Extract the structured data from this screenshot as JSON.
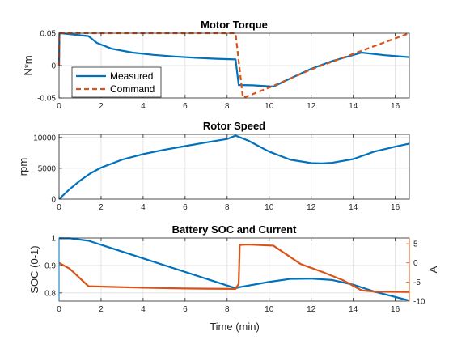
{
  "figure": {
    "xlabel": "Time (min)"
  },
  "chart_data": [
    {
      "type": "line",
      "title": "Motor Torque",
      "ylabel": "N*m",
      "xlim": [
        0,
        16.67
      ],
      "ylim": [
        -0.05,
        0.05
      ],
      "xticks": [
        0,
        2,
        4,
        6,
        8,
        10,
        12,
        14,
        16
      ],
      "yticks": [
        -0.05,
        0,
        0.05
      ],
      "ytick_labels": [
        "-0.05",
        "0",
        "0.05"
      ],
      "grid": true,
      "legend": "lower-left",
      "series": [
        {
          "name": "Measured",
          "color": "#0072BD",
          "style": "solid",
          "x": [
            0,
            0.02,
            0.1,
            1.4,
            1.8,
            2.5,
            3.5,
            4.5,
            5.5,
            6.5,
            7.5,
            8.4,
            8.55,
            9.2,
            10.2,
            11,
            12,
            13,
            14.4,
            15.5,
            16.67
          ],
          "y": [
            0,
            0.05,
            0.05,
            0.0455,
            0.035,
            0.026,
            0.02,
            0.0165,
            0.014,
            0.012,
            0.0105,
            0.0095,
            -0.03,
            -0.0305,
            -0.0325,
            -0.02,
            -0.005,
            0.007,
            0.02,
            0.016,
            0.013
          ]
        },
        {
          "name": "Command",
          "color": "#D95319",
          "style": "dashed",
          "x": [
            0,
            0.02,
            8.4,
            8.75,
            8.75,
            10,
            12,
            14,
            16.67
          ],
          "y": [
            0,
            0.05,
            0.05,
            -0.05,
            -0.05,
            -0.034,
            -0.006,
            0.018,
            0.05
          ]
        }
      ]
    },
    {
      "type": "line",
      "title": "Rotor Speed",
      "ylabel": "rpm",
      "xlim": [
        0,
        16.67
      ],
      "ylim": [
        0,
        10500
      ],
      "xticks": [
        0,
        2,
        4,
        6,
        8,
        10,
        12,
        14,
        16
      ],
      "yticks": [
        0,
        5000,
        10000
      ],
      "ytick_labels": [
        "0",
        "5000",
        "10000"
      ],
      "grid": true,
      "series": [
        {
          "color": "#0072BD",
          "style": "solid",
          "x": [
            0,
            0.5,
            1,
            1.5,
            2,
            3,
            4,
            5,
            6,
            7,
            8,
            8.4,
            9,
            10,
            11,
            12,
            12.5,
            13,
            14,
            15,
            16,
            16.67
          ],
          "y": [
            0,
            1600,
            3000,
            4200,
            5100,
            6400,
            7300,
            8000,
            8600,
            9200,
            9750,
            10300,
            9500,
            7700,
            6400,
            5850,
            5800,
            5900,
            6500,
            7700,
            8500,
            9000
          ]
        }
      ]
    },
    {
      "type": "line",
      "title": "Battery SOC and Current",
      "ylabel": "SOC (0-1)",
      "ylabel_right": "A",
      "xlabel": "Time (min)",
      "xlim": [
        0,
        16.67
      ],
      "ylim": [
        0.77,
        1.0
      ],
      "ylim_right": [
        -10,
        6.5
      ],
      "xticks": [
        0,
        2,
        4,
        6,
        8,
        10,
        12,
        14,
        16
      ],
      "yticks": [
        0.8,
        0.9,
        1.0
      ],
      "ytick_labels": [
        "0.8",
        "0.9",
        "1"
      ],
      "yticks_right": [
        -10,
        -5,
        0,
        5
      ],
      "ytick_labels_right": [
        "-10",
        "-5",
        "0",
        "5"
      ],
      "grid": true,
      "series": [
        {
          "axis": "left",
          "color": "#0072BD",
          "style": "solid",
          "x": [
            0,
            0.5,
            1.4,
            8.4,
            8.6,
            10,
            11,
            12,
            13,
            14,
            15,
            16.67
          ],
          "y": [
            0.999,
            0.999,
            0.99,
            0.817,
            0.821,
            0.84,
            0.851,
            0.852,
            0.847,
            0.83,
            0.805,
            0.772
          ]
        },
        {
          "axis": "right",
          "color": "#D95319",
          "style": "solid",
          "x": [
            0,
            0.5,
            1.4,
            2,
            4,
            6,
            8.4,
            8.55,
            8.6,
            9,
            10.2,
            11.5,
            12.5,
            13.5,
            14.4,
            15,
            16.67
          ],
          "y": [
            0,
            -1.5,
            -6.1,
            -6.2,
            -6.5,
            -6.7,
            -6.8,
            -5.5,
            4.7,
            4.8,
            4.5,
            -0.3,
            -2.3,
            -4.5,
            -7.2,
            -7.5,
            -7.6
          ]
        }
      ]
    }
  ]
}
